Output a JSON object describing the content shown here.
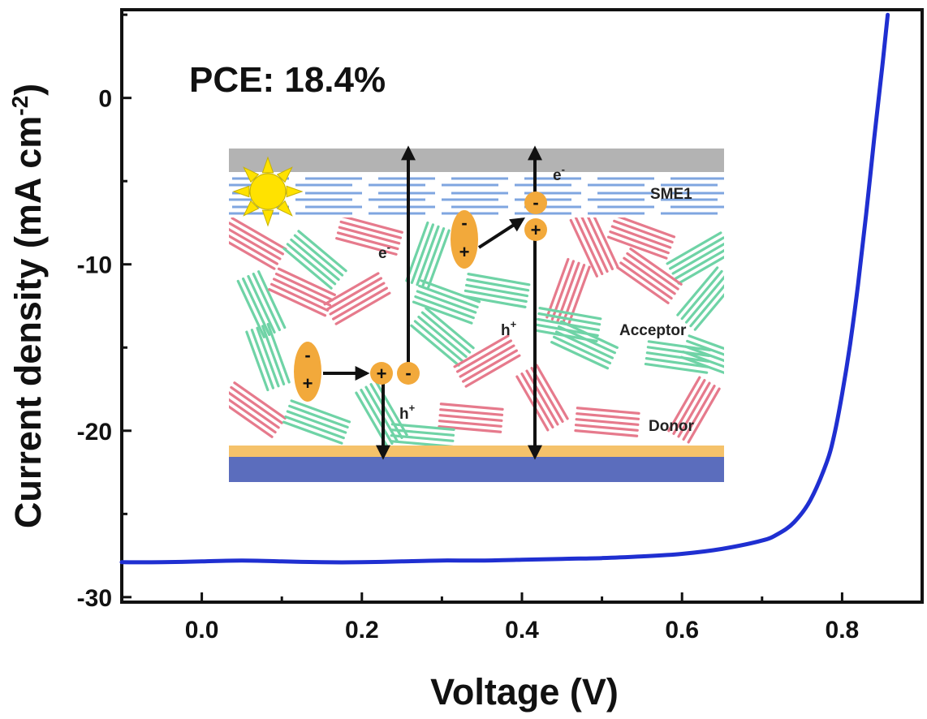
{
  "chart_data": {
    "type": "line",
    "title": "",
    "xlabel": "Voltage (V)",
    "ylabel_main": "Current density (mA cm",
    "ylabel_sup": "-2",
    "ylabel_close": ")",
    "xlim": [
      -0.1,
      0.9
    ],
    "ylim": [
      -30.3,
      5.3
    ],
    "xticks": [
      0.0,
      0.2,
      0.4,
      0.6,
      0.8
    ],
    "xtick_labels": [
      "0.0",
      "0.2",
      "0.4",
      "0.6",
      "0.8"
    ],
    "yticks": [
      0,
      -10,
      -20,
      -30
    ],
    "ytick_labels": [
      "0",
      "-10",
      "-20",
      "-30"
    ],
    "grid": false,
    "annotation": "PCE: 18.4%",
    "series": [
      {
        "color": "#1f2fd1",
        "x": [
          -0.1,
          -0.05,
          0.0,
          0.05,
          0.1,
          0.15,
          0.2,
          0.25,
          0.3,
          0.35,
          0.4,
          0.45,
          0.5,
          0.55,
          0.6,
          0.65,
          0.7,
          0.72,
          0.74,
          0.76,
          0.78,
          0.79,
          0.8,
          0.81,
          0.82,
          0.83,
          0.84,
          0.85,
          0.857
        ],
        "y": [
          -27.9,
          -27.9,
          -27.85,
          -27.8,
          -27.85,
          -27.9,
          -27.9,
          -27.85,
          -27.8,
          -27.8,
          -27.75,
          -27.7,
          -27.65,
          -27.55,
          -27.4,
          -27.1,
          -26.6,
          -26.2,
          -25.5,
          -24.2,
          -22.0,
          -20.3,
          -17.8,
          -14.8,
          -11.2,
          -7.0,
          -2.5,
          1.8,
          5.0
        ]
      }
    ],
    "inset": {
      "labels": {
        "sme1": "SME1",
        "acceptor": "Acceptor",
        "donor": "Donor",
        "e_left": "e",
        "e_right": "e",
        "h_left": "h",
        "h_right": "h",
        "minus_sup": "-",
        "plus_sup": "+"
      },
      "charges": {
        "plus": "+",
        "minus": "-"
      },
      "colors": {
        "top_electrode": "#b3b3b3",
        "sme1_lines": "#7fa6e0",
        "acceptor_lines": "#6fd3a6",
        "donor_lines": "#e67a8c",
        "exciton": "#f2a93b",
        "bottom_yellow": "#f5c26b",
        "bottom_electrode": "#5b6dbd",
        "sun": "#ffe200"
      }
    }
  }
}
